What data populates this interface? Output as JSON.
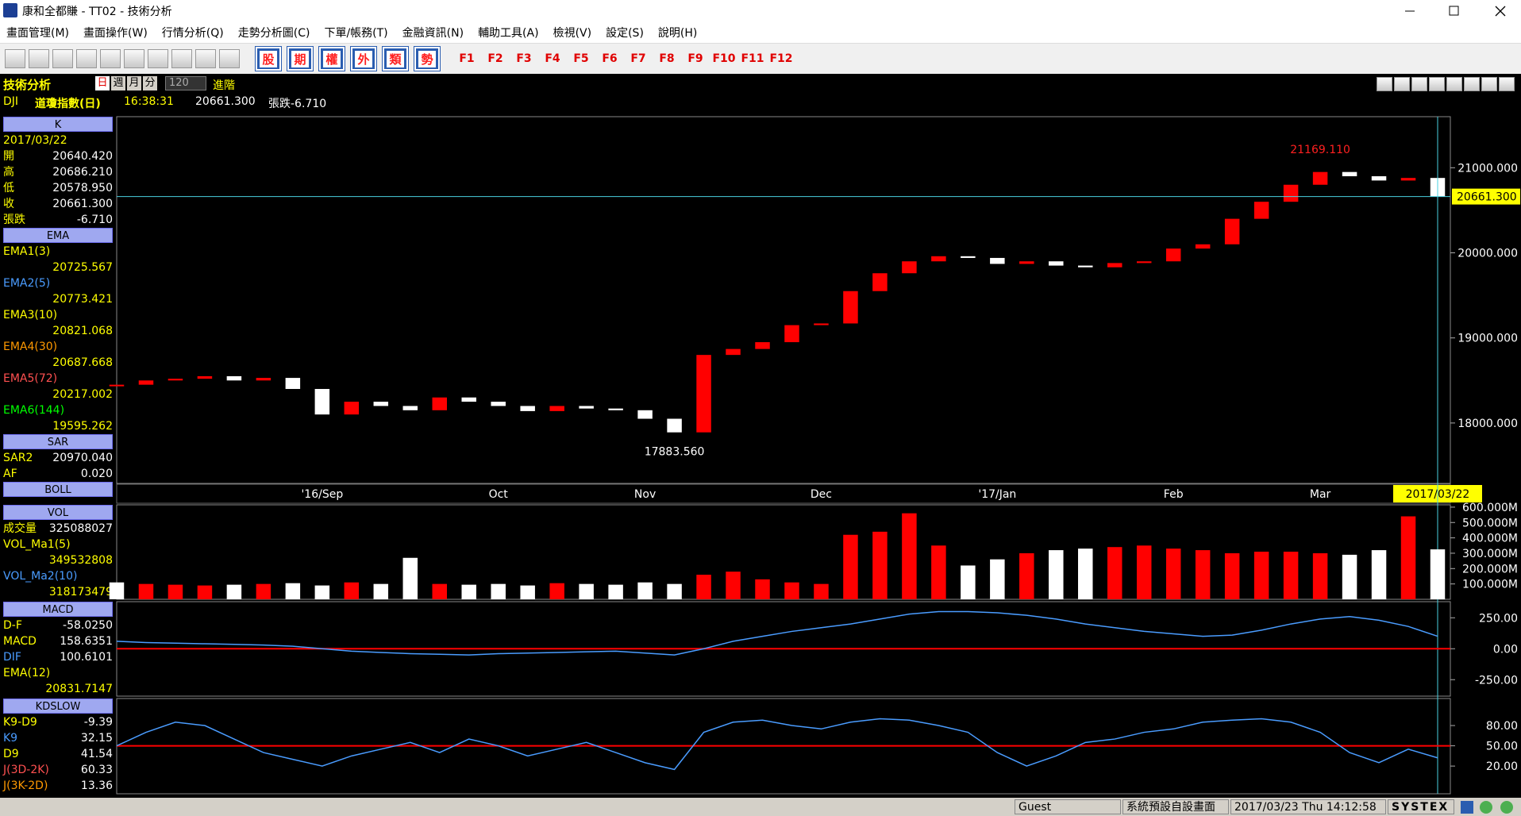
{
  "window": {
    "title": "康和全都賺 - TT02 - 技術分析"
  },
  "menu": [
    "畫面管理(M)",
    "畫面操作(W)",
    "行情分析(Q)",
    "走勢分析圖(C)",
    "下單/帳務(T)",
    "金融資訊(N)",
    "輔助工具(A)",
    "檢視(V)",
    "設定(S)",
    "說明(H)"
  ],
  "toolbar": {
    "quick_buttons": [
      "股",
      "期",
      "權",
      "外",
      "類",
      "勢"
    ],
    "function_keys": [
      "F1",
      "F2",
      "F3",
      "F4",
      "F5",
      "F6",
      "F7",
      "F8",
      "F9",
      "F10",
      "F11",
      "F12"
    ]
  },
  "info": {
    "panel_title": "技術分析",
    "periods": [
      "日",
      "週",
      "月",
      "分"
    ],
    "count": "120",
    "advanced": "進階",
    "symbol": "DJI",
    "name": "道瓊指數(日)",
    "time": "16:38:31",
    "price": "20661.300",
    "change": "張跌-6.710"
  },
  "indicator_groups": [
    [
      {
        "header": "K",
        "stacked": false,
        "rows": [
          {
            "label": "2017/03/22",
            "value": ""
          },
          {
            "label": "開",
            "value": "20640.420"
          },
          {
            "label": "高",
            "value": "20686.210"
          },
          {
            "label": "低",
            "value": "20578.950"
          },
          {
            "label": "收",
            "value": "20661.300"
          },
          {
            "label": "張跌",
            "value": "-6.710"
          }
        ]
      },
      {
        "header": "EMA",
        "stacked": true,
        "rows": [
          {
            "label": "EMA1(3)",
            "value": "20725.567",
            "color": "#ffff00"
          },
          {
            "label": "EMA2(5)",
            "value": "20773.421",
            "color": "#4a9cff"
          },
          {
            "label": "EMA3(10)",
            "value": "20821.068",
            "color": "#ffff00"
          },
          {
            "label": "EMA4(30)",
            "value": "20687.668",
            "color": "#ff9900"
          },
          {
            "label": "EMA5(72)",
            "value": "20217.002",
            "color": "#ff5050"
          },
          {
            "label": "EMA6(144)",
            "value": "19595.262",
            "color": "#00ff00"
          }
        ]
      },
      {
        "header": "SAR",
        "stacked": false,
        "rows": [
          {
            "label": "SAR2",
            "value": "20970.040"
          },
          {
            "label": "AF",
            "value": "0.020"
          }
        ]
      },
      {
        "header": "BOLL",
        "stacked": false,
        "rows": []
      }
    ],
    [
      {
        "header": "VOL",
        "stacked": false,
        "rows": [
          {
            "label": "成交量",
            "value": "325088027"
          }
        ]
      },
      {
        "header": "",
        "stacked": true,
        "rows": [
          {
            "label": "VOL_Ma1(5)",
            "value": "349532808",
            "color": "#ffff00"
          },
          {
            "label": "VOL_Ma2(10)",
            "value": "318173479",
            "color": "#4a9cff"
          }
        ]
      }
    ],
    [
      {
        "header": "MACD",
        "stacked": false,
        "rows": [
          {
            "label": "D-F",
            "value": "-58.0250"
          },
          {
            "label": "MACD",
            "value": "158.6351"
          },
          {
            "label": "DIF",
            "value": "100.6101",
            "color": "#4a9cff"
          }
        ]
      },
      {
        "header": "",
        "stacked": true,
        "rows": [
          {
            "label": "EMA(12)",
            "value": "20831.7147",
            "color": "#ffff00"
          }
        ]
      }
    ],
    [
      {
        "header": "KDSLOW",
        "stacked": false,
        "rows": [
          {
            "label": "K9-D9",
            "value": "-9.39"
          },
          {
            "label": "K9",
            "value": "32.15",
            "color": "#4a9cff"
          },
          {
            "label": "D9",
            "value": "41.54",
            "color": "#ffff00"
          },
          {
            "label": "J(3D-2K)",
            "value": "60.33",
            "color": "#ff5050"
          },
          {
            "label": "J(3K-2D)",
            "value": "13.36",
            "color": "#ff9900"
          }
        ]
      }
    ]
  ],
  "chart_data": {
    "type": "candlestick",
    "categories": [
      null,
      null,
      null,
      null,
      null,
      null,
      null,
      "'16/Sep",
      null,
      null,
      null,
      null,
      null,
      "Oct",
      null,
      null,
      null,
      null,
      "Nov",
      null,
      null,
      null,
      null,
      null,
      "Dec",
      null,
      null,
      null,
      null,
      null,
      "'17/Jan",
      null,
      null,
      null,
      null,
      null,
      "Feb",
      null,
      null,
      null,
      null,
      "Mar",
      null,
      null,
      null,
      "2017/03/22"
    ],
    "closes": [
      18450,
      18500,
      18520,
      18550,
      18500,
      18530,
      18400,
      18100,
      18250,
      18200,
      18150,
      18300,
      18250,
      18200,
      18140,
      18200,
      18170,
      18150,
      18050,
      17890,
      18800,
      18870,
      18950,
      19150,
      19170,
      19550,
      19760,
      19900,
      19960,
      19940,
      19870,
      19900,
      19850,
      19830,
      19880,
      19900,
      20050,
      20100,
      20400,
      20600,
      20800,
      20950,
      20900,
      20850,
      20880,
      20661.3
    ],
    "up_color": "#ff0000",
    "down_color": "#ffffff",
    "ylim": [
      17290,
      21600
    ],
    "yticks": [
      {
        "value": 21000,
        "label": "21000.000"
      },
      {
        "value": 20000,
        "label": "20000.000"
      },
      {
        "value": 19000,
        "label": "19000.000"
      },
      {
        "value": 18000,
        "label": "18000.000"
      }
    ],
    "last_price_label": "20661.300",
    "high_annotation": {
      "value": 21169.11,
      "label": "21169.110"
    },
    "low_annotation": {
      "value": 17883.56,
      "label": "17883.560"
    },
    "volume": {
      "values": [
        110,
        100,
        95,
        90,
        95,
        100,
        105,
        90,
        110,
        100,
        270,
        100,
        95,
        100,
        90,
        105,
        100,
        95,
        110,
        100,
        160,
        180,
        130,
        110,
        100,
        420,
        440,
        560,
        350,
        220,
        260,
        300,
        320,
        330,
        340,
        350,
        330,
        320,
        300,
        310,
        310,
        300,
        290,
        320,
        540,
        325.088
      ],
      "ylim": [
        0,
        615
      ],
      "yticks": [
        {
          "value": 600,
          "label": "600.000M"
        },
        {
          "value": 500,
          "label": "500.000M"
        },
        {
          "value": 400,
          "label": "400.000M"
        },
        {
          "value": 300,
          "label": "300.000M"
        },
        {
          "value": 200,
          "label": "200.000M"
        },
        {
          "value": 100,
          "label": "100.000M"
        }
      ]
    },
    "macd": {
      "name": "DIF",
      "color": "#4a9cff",
      "values": [
        60,
        50,
        45,
        40,
        35,
        30,
        20,
        0,
        -20,
        -30,
        -40,
        -45,
        -50,
        -40,
        -35,
        -30,
        -25,
        -20,
        -35,
        -50,
        0,
        60,
        100,
        140,
        170,
        200,
        240,
        280,
        300,
        300,
        290,
        270,
        240,
        200,
        170,
        140,
        120,
        100,
        110,
        150,
        200,
        240,
        260,
        230,
        180,
        100.61
      ],
      "ylim": [
        -383,
        380
      ],
      "yticks": [
        {
          "value": 250,
          "label": "250.00"
        },
        {
          "value": 0,
          "label": "0.00"
        },
        {
          "value": -250,
          "label": "-250.00"
        }
      ]
    },
    "kd": {
      "name": "K9",
      "color": "#4a9cff",
      "values": [
        50,
        70,
        85,
        80,
        60,
        40,
        30,
        20,
        35,
        45,
        55,
        40,
        60,
        50,
        35,
        45,
        55,
        40,
        25,
        15,
        70,
        85,
        88,
        80,
        75,
        85,
        90,
        88,
        80,
        70,
        40,
        20,
        35,
        55,
        60,
        70,
        75,
        85,
        88,
        90,
        85,
        70,
        40,
        25,
        45,
        32.15
      ],
      "ylim": [
        -21,
        120
      ],
      "yticks": [
        {
          "value": 80,
          "label": "80.00"
        },
        {
          "value": 50,
          "label": "50.00"
        },
        {
          "value": 20,
          "label": "20.00"
        }
      ]
    }
  },
  "status": {
    "user": "Guest",
    "layout": "系統預設自設畫面",
    "datetime": "2017/03/23 Thu 14:12:58",
    "brand": "SYSTEX"
  }
}
